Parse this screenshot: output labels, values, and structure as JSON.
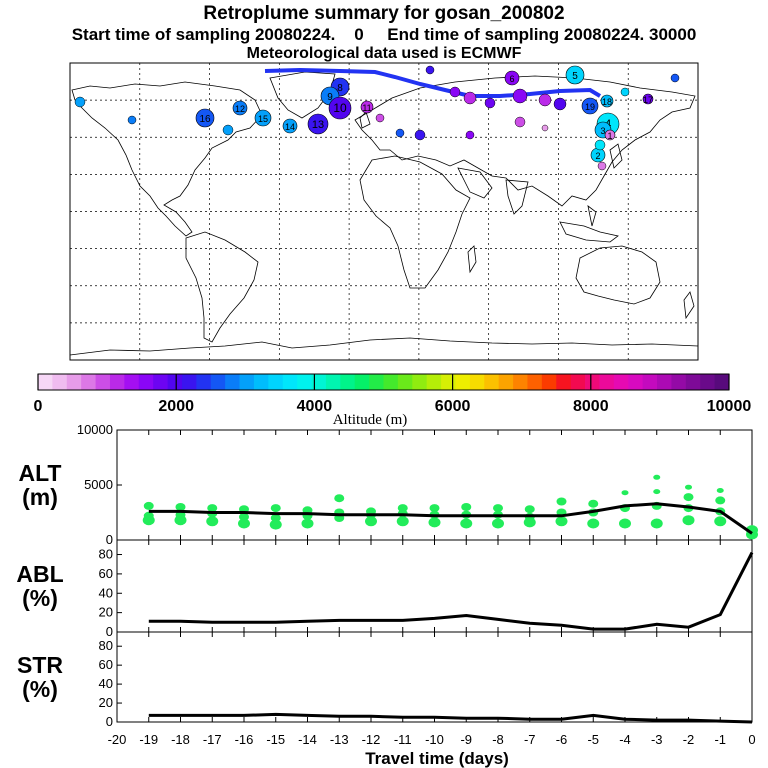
{
  "header": {
    "title": "Retroplume summary for gosan_200802",
    "line2": "Start time of sampling 20080224.    0     End time of sampling 20080224. 30000",
    "line3": "Meteorological data used is ECMWF"
  },
  "colorbar": {
    "label": "Altitude (m)",
    "ticks": [
      "0",
      "2000",
      "4000",
      "6000",
      "8000",
      "10000"
    ],
    "colors": [
      "#f6d7f6",
      "#f0bcf0",
      "#e79ce9",
      "#dc78e6",
      "#cc4ee6",
      "#ba2ae8",
      "#a40ff2",
      "#8a06f6",
      "#6d04f2",
      "#5205ef",
      "#3a14f0",
      "#2233f2",
      "#1457f5",
      "#0a7df8",
      "#04a0fa",
      "#00bdfc",
      "#00d4fd",
      "#00e6fb",
      "#00f2ee",
      "#00f5d4",
      "#00f5b0",
      "#00f48a",
      "#05f068",
      "#22ec48",
      "#44ea2c",
      "#6aea1a",
      "#90ec10",
      "#b5ee08",
      "#d6ef05",
      "#eeee00",
      "#f7dc00",
      "#fbc100",
      "#fca300",
      "#fd8300",
      "#fd6100",
      "#fb3b00",
      "#f61420",
      "#f20a50",
      "#ef0a78",
      "#ec0a9a",
      "#e60ab2",
      "#d80ac0",
      "#c40abe",
      "#ac0ab4",
      "#940aa6",
      "#7e0a98",
      "#6a0a8a",
      "#580a7c"
    ]
  },
  "map": {
    "labels": [
      {
        "text": "5",
        "color": "#00d4fd"
      },
      {
        "text": "6",
        "color": "#8a06f6"
      },
      {
        "text": "8",
        "color": "#2233f2"
      },
      {
        "text": "9",
        "color": "#0a7df8"
      },
      {
        "text": "10",
        "color": "#5205ef"
      },
      {
        "text": "11",
        "color": "#ba2ae8"
      },
      {
        "text": "12",
        "color": "#0a7df8"
      },
      {
        "text": "13",
        "color": "#3a14f0"
      },
      {
        "text": "14",
        "color": "#04a0fa"
      },
      {
        "text": "15",
        "color": "#04a0fa"
      },
      {
        "text": "16",
        "color": "#1457f5"
      },
      {
        "text": "17",
        "color": "#6d04f2"
      },
      {
        "text": "18",
        "color": "#00bdfc"
      },
      {
        "text": "19",
        "color": "#1457f5"
      },
      {
        "text": "4",
        "color": "#00e6fb"
      },
      {
        "text": "3",
        "color": "#00bdfc"
      },
      {
        "text": "2",
        "color": "#00d4fd"
      },
      {
        "text": "1",
        "color": "#dc78e6"
      }
    ]
  },
  "chart_data": [
    {
      "type": "line",
      "panel": "ALT",
      "ylabel": "ALT\n(m)",
      "ylabel_line1": "ALT",
      "ylabel_line2": "(m)",
      "ylim": [
        0,
        10000
      ],
      "yticks": [
        "10000",
        "5000",
        "0"
      ],
      "x": [
        -19,
        -18,
        -17,
        -16,
        -15,
        -14,
        -13,
        -12,
        -11,
        -10,
        -9,
        -8,
        -7,
        -6,
        -5,
        -4,
        -3,
        -2,
        -1,
        0
      ],
      "series": [
        {
          "name": "mean altitude",
          "values": [
            2600,
            2600,
            2500,
            2500,
            2400,
            2400,
            2300,
            2300,
            2300,
            2200,
            2200,
            2200,
            2200,
            2200,
            2600,
            3100,
            3300,
            3000,
            2600,
            600
          ]
        }
      ],
      "scatter_color": "#22ec5a",
      "scatter": [
        [
          -19,
          3100
        ],
        [
          -19,
          2200
        ],
        [
          -19,
          1800
        ],
        [
          -18,
          3000
        ],
        [
          -18,
          2300
        ],
        [
          -18,
          1800
        ],
        [
          -17,
          2900
        ],
        [
          -17,
          2400
        ],
        [
          -17,
          1700
        ],
        [
          -16,
          2800
        ],
        [
          -16,
          2100
        ],
        [
          -16,
          1500
        ],
        [
          -15,
          2900
        ],
        [
          -15,
          2000
        ],
        [
          -15,
          1400
        ],
        [
          -14,
          2700
        ],
        [
          -14,
          2200
        ],
        [
          -14,
          1500
        ],
        [
          -13,
          3800
        ],
        [
          -13,
          2500
        ],
        [
          -13,
          2000
        ],
        [
          -12,
          2600
        ],
        [
          -12,
          2300
        ],
        [
          -12,
          1700
        ],
        [
          -11,
          2900
        ],
        [
          -11,
          2400
        ],
        [
          -11,
          1700
        ],
        [
          -10,
          2900
        ],
        [
          -10,
          2300
        ],
        [
          -10,
          1600
        ],
        [
          -9,
          3000
        ],
        [
          -9,
          2300
        ],
        [
          -9,
          1500
        ],
        [
          -8,
          2900
        ],
        [
          -8,
          2300
        ],
        [
          -8,
          1500
        ],
        [
          -7,
          2800
        ],
        [
          -7,
          2100
        ],
        [
          -7,
          1600
        ],
        [
          -6,
          3500
        ],
        [
          -6,
          2500
        ],
        [
          -6,
          1700
        ],
        [
          -5,
          3300
        ],
        [
          -5,
          2500
        ],
        [
          -5,
          1500
        ],
        [
          -4,
          4300
        ],
        [
          -4,
          2900
        ],
        [
          -4,
          1500
        ],
        [
          -3,
          5700
        ],
        [
          -3,
          4400
        ],
        [
          -3,
          3100
        ],
        [
          -3,
          1500
        ],
        [
          -2,
          4800
        ],
        [
          -2,
          3900
        ],
        [
          -2,
          2900
        ],
        [
          -2,
          1800
        ],
        [
          -1,
          4500
        ],
        [
          -1,
          3600
        ],
        [
          -1,
          2600
        ],
        [
          -1,
          1700
        ],
        [
          0,
          900
        ],
        [
          0,
          500
        ]
      ]
    },
    {
      "type": "line",
      "panel": "ABL",
      "ylabel": "ABL\n(%)",
      "ylabel_line1": "ABL",
      "ylabel_line2": "(%)",
      "ylim": [
        0,
        95
      ],
      "yticks": [
        "80",
        "60",
        "40",
        "20",
        "0"
      ],
      "x": [
        -19,
        -18,
        -17,
        -16,
        -15,
        -14,
        -13,
        -12,
        -11,
        -10,
        -9,
        -8,
        -7,
        -6,
        -5,
        -4,
        -3,
        -2,
        -1,
        0
      ],
      "series": [
        {
          "name": "ABL fraction",
          "values": [
            11,
            11,
            10,
            10,
            10,
            11,
            12,
            12,
            12,
            14,
            17,
            13,
            9,
            7,
            3,
            3,
            8,
            5,
            18,
            82
          ]
        }
      ]
    },
    {
      "type": "line",
      "panel": "STR",
      "ylabel": "STR\n(%)",
      "ylabel_line1": "STR",
      "ylabel_line2": "(%)",
      "ylim": [
        0,
        95
      ],
      "yticks": [
        "80",
        "60",
        "40",
        "20",
        "0"
      ],
      "x": [
        -19,
        -18,
        -17,
        -16,
        -15,
        -14,
        -13,
        -12,
        -11,
        -10,
        -9,
        -8,
        -7,
        -6,
        -5,
        -4,
        -3,
        -2,
        -1,
        0
      ],
      "series": [
        {
          "name": "stratospheric fraction",
          "values": [
            7,
            7,
            7,
            7,
            8,
            7,
            6,
            6,
            5,
            5,
            4,
            4,
            3,
            3,
            7,
            3,
            2,
            2,
            1,
            0
          ]
        }
      ]
    }
  ],
  "xaxis": {
    "label": "Travel time (days)",
    "ticks": [
      "-20",
      "-19",
      "-18",
      "-17",
      "-16",
      "-15",
      "-14",
      "-13",
      "-12",
      "-11",
      "-10",
      "-9",
      "-8",
      "-7",
      "-6",
      "-5",
      "-4",
      "-3",
      "-2",
      "-1",
      "0"
    ]
  }
}
